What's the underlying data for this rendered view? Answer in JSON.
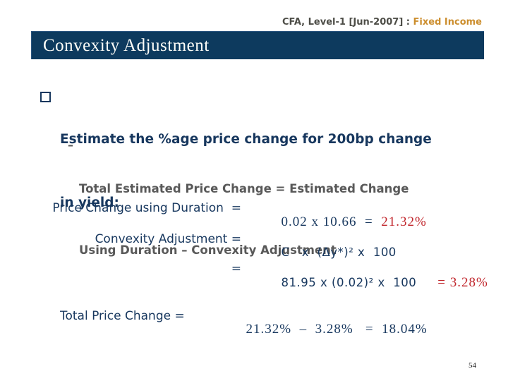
{
  "header": {
    "course_label": "CFA, Level-1 [Jun-2007] : ",
    "topic_label": "Fixed Income"
  },
  "title_bar": {
    "title": "Convexity Adjustment"
  },
  "colors": {
    "navy_text": "#17375E",
    "title_bar_background": "#0D3A5E",
    "accent_red": "#C1272D",
    "topic_orange": "#CC8E2E",
    "header_gray": "#4D4D47",
    "sub_bullet_gray": "#595959"
  },
  "content": {
    "bullet": {
      "lines": [
        "Estimate the %age price change for 200bp change",
        "in yield:"
      ]
    },
    "sub_bullet": {
      "marker": "–",
      "lines": [
        "Total Estimated Price Change = Estimated Change",
        "Using Duration – Convexity Adjustment"
      ]
    }
  },
  "calculation": {
    "rows": [
      {
        "label": "Price Change using Duration  =",
        "expression": "0.02 x 10.66  =  ",
        "result": "21.32%"
      },
      {
        "label": "Convexity Adjustment =",
        "expression": "C   x  (Δy*)² x  100",
        "result": ""
      },
      {
        "label": "=",
        "expression": "81.95 x (0.02)² x  100",
        "result": "= 3.28%"
      },
      {
        "label": "Total Price Change =",
        "expression": "21.32%  –  3.28%   =  18.04%",
        "result": ""
      }
    ]
  },
  "footer": {
    "page_number": "54"
  }
}
